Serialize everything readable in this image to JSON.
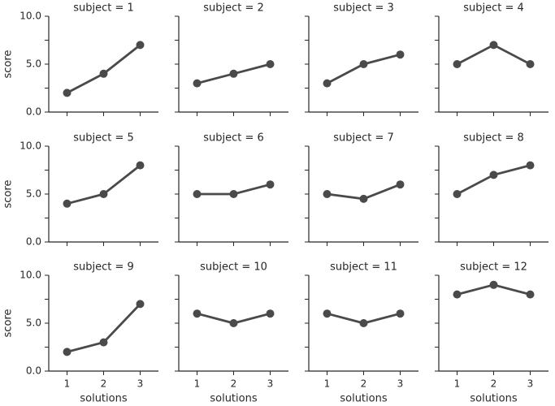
{
  "chart_data": [
    {
      "type": "line",
      "title": "subject = 1",
      "x": [
        1,
        2,
        3
      ],
      "series": [
        {
          "color": "#4a4a4a",
          "values": [
            2,
            4,
            7
          ]
        }
      ],
      "xlim": [
        0.5,
        3.5
      ],
      "xticks": [
        1,
        2,
        3
      ],
      "ylim": [
        0,
        10
      ],
      "yticks": [
        {
          "value": 0,
          "label": "0.0"
        },
        2.5,
        {
          "value": 5,
          "label": "5.0"
        },
        7.5,
        {
          "value": 10,
          "label": "10.0"
        }
      ],
      "ylabel": "score"
    },
    {
      "type": "line",
      "title": "subject = 2",
      "x": [
        1,
        2,
        3
      ],
      "series": [
        {
          "color": "#4a4a4a",
          "values": [
            3,
            4,
            5
          ]
        }
      ],
      "xlim": [
        0.5,
        3.5
      ],
      "xticks": [
        1,
        2,
        3
      ],
      "ylim": [
        0,
        10
      ],
      "yticks": [
        0,
        2.5,
        5,
        7.5,
        10
      ]
    },
    {
      "type": "line",
      "title": "subject = 3",
      "x": [
        1,
        2,
        3
      ],
      "series": [
        {
          "color": "#4a4a4a",
          "values": [
            3,
            5,
            6
          ]
        }
      ],
      "xlim": [
        0.5,
        3.5
      ],
      "xticks": [
        1,
        2,
        3
      ],
      "ylim": [
        0,
        10
      ],
      "yticks": [
        0,
        2.5,
        5,
        7.5,
        10
      ]
    },
    {
      "type": "line",
      "title": "subject = 4",
      "x": [
        1,
        2,
        3
      ],
      "series": [
        {
          "color": "#4a4a4a",
          "values": [
            5,
            7,
            5
          ]
        }
      ],
      "xlim": [
        0.5,
        3.5
      ],
      "xticks": [
        1,
        2,
        3
      ],
      "ylim": [
        0,
        10
      ],
      "yticks": [
        0,
        2.5,
        5,
        7.5,
        10
      ]
    },
    {
      "type": "line",
      "title": "subject = 5",
      "x": [
        1,
        2,
        3
      ],
      "series": [
        {
          "color": "#4a4a4a",
          "values": [
            4,
            5,
            8
          ]
        }
      ],
      "xlim": [
        0.5,
        3.5
      ],
      "xticks": [
        1,
        2,
        3
      ],
      "ylim": [
        0,
        10
      ],
      "yticks": [
        {
          "value": 0,
          "label": "0.0"
        },
        2.5,
        {
          "value": 5,
          "label": "5.0"
        },
        7.5,
        {
          "value": 10,
          "label": "10.0"
        }
      ],
      "ylabel": "score"
    },
    {
      "type": "line",
      "title": "subject = 6",
      "x": [
        1,
        2,
        3
      ],
      "series": [
        {
          "color": "#4a4a4a",
          "values": [
            5,
            5,
            6
          ]
        }
      ],
      "xlim": [
        0.5,
        3.5
      ],
      "xticks": [
        1,
        2,
        3
      ],
      "ylim": [
        0,
        10
      ],
      "yticks": [
        0,
        2.5,
        5,
        7.5,
        10
      ]
    },
    {
      "type": "line",
      "title": "subject = 7",
      "x": [
        1,
        2,
        3
      ],
      "series": [
        {
          "color": "#4a4a4a",
          "values": [
            5,
            4.5,
            6
          ]
        }
      ],
      "xlim": [
        0.5,
        3.5
      ],
      "xticks": [
        1,
        2,
        3
      ],
      "ylim": [
        0,
        10
      ],
      "yticks": [
        0,
        2.5,
        5,
        7.5,
        10
      ]
    },
    {
      "type": "line",
      "title": "subject = 8",
      "x": [
        1,
        2,
        3
      ],
      "series": [
        {
          "color": "#4a4a4a",
          "values": [
            5,
            7,
            8
          ]
        }
      ],
      "xlim": [
        0.5,
        3.5
      ],
      "xticks": [
        1,
        2,
        3
      ],
      "ylim": [
        0,
        10
      ],
      "yticks": [
        0,
        2.5,
        5,
        7.5,
        10
      ]
    },
    {
      "type": "line",
      "title": "subject = 9",
      "x": [
        1,
        2,
        3
      ],
      "series": [
        {
          "color": "#4a4a4a",
          "values": [
            2,
            3,
            7
          ]
        }
      ],
      "xlim": [
        0.5,
        3.5
      ],
      "xticks": [
        1,
        2,
        3
      ],
      "ylim": [
        0,
        10
      ],
      "yticks": [
        {
          "value": 0,
          "label": "0.0"
        },
        2.5,
        {
          "value": 5,
          "label": "5.0"
        },
        7.5,
        {
          "value": 10,
          "label": "10.0"
        }
      ],
      "ylabel": "score",
      "xlabel": "solutions"
    },
    {
      "type": "line",
      "title": "subject = 10",
      "x": [
        1,
        2,
        3
      ],
      "series": [
        {
          "color": "#4a4a4a",
          "values": [
            6,
            5,
            6
          ]
        }
      ],
      "xlim": [
        0.5,
        3.5
      ],
      "xticks": [
        1,
        2,
        3
      ],
      "ylim": [
        0,
        10
      ],
      "yticks": [
        0,
        2.5,
        5,
        7.5,
        10
      ],
      "xlabel": "solutions"
    },
    {
      "type": "line",
      "title": "subject = 11",
      "x": [
        1,
        2,
        3
      ],
      "series": [
        {
          "color": "#4a4a4a",
          "values": [
            6,
            5,
            6
          ]
        }
      ],
      "xlim": [
        0.5,
        3.5
      ],
      "xticks": [
        1,
        2,
        3
      ],
      "ylim": [
        0,
        10
      ],
      "yticks": [
        0,
        2.5,
        5,
        7.5,
        10
      ],
      "xlabel": "solutions"
    },
    {
      "type": "line",
      "title": "subject = 12",
      "x": [
        1,
        2,
        3
      ],
      "series": [
        {
          "color": "#4a4a4a",
          "values": [
            8,
            9,
            8
          ]
        }
      ],
      "xlim": [
        0.5,
        3.5
      ],
      "xticks": [
        1,
        2,
        3
      ],
      "ylim": [
        0,
        10
      ],
      "yticks": [
        0,
        2.5,
        5,
        7.5,
        10
      ],
      "xlabel": "solutions"
    }
  ]
}
